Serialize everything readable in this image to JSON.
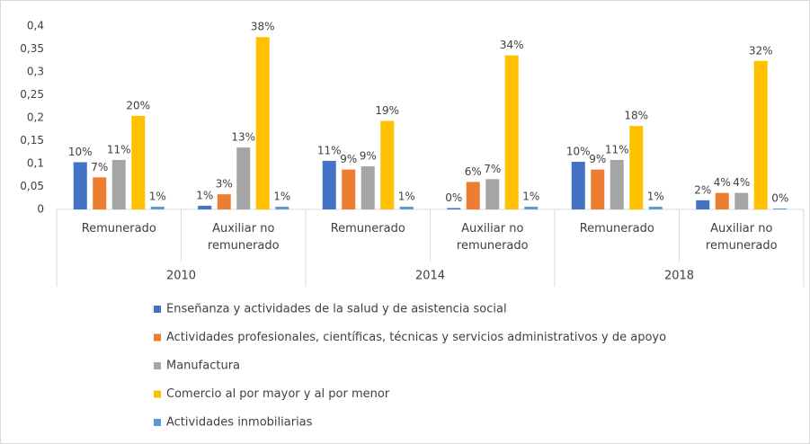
{
  "chart_data": {
    "type": "bar",
    "categories": [
      "Remunerado",
      "Auxiliar no remunerado",
      "Remunerado",
      "Auxiliar no remunerado",
      "Remunerado",
      "Auxiliar no remunerado"
    ],
    "category_groups": [
      "2010",
      "2014",
      "2018"
    ],
    "series": [
      {
        "name": "Enseñanza y actividades de la salud y de asistencia social",
        "color": "#4472c4",
        "values": [
          0.103,
          0.008,
          0.106,
          0.003,
          0.104,
          0.02
        ],
        "value_labels": [
          "10%",
          "1%",
          "11%",
          "0%",
          "10%",
          "2%"
        ]
      },
      {
        "name": "Actividades profesionales, científicas, técnicas y servicios administrativos y de apoyo",
        "color": "#ed7d31",
        "values": [
          0.07,
          0.033,
          0.087,
          0.06,
          0.087,
          0.036
        ],
        "value_labels": [
          "7%",
          "3%",
          "9%",
          "6%",
          "9%",
          "4%"
        ]
      },
      {
        "name": "Manufactura",
        "color": "#a5a5a5",
        "values": [
          0.108,
          0.135,
          0.094,
          0.066,
          0.108,
          0.036
        ],
        "value_labels": [
          "11%",
          "13%",
          "9%",
          "7%",
          "11%",
          "4%"
        ]
      },
      {
        "name": "Comercio al por mayor y al por menor",
        "color": "#ffc000",
        "values": [
          0.204,
          0.376,
          0.193,
          0.336,
          0.182,
          0.324
        ],
        "value_labels": [
          "20%",
          "38%",
          "19%",
          "34%",
          "18%",
          "32%"
        ]
      },
      {
        "name": "Actividades inmobiliarias",
        "color": "#5b9bd5",
        "values": [
          0.006,
          0.006,
          0.006,
          0.006,
          0.006,
          0.002
        ],
        "value_labels": [
          "1%",
          "1%",
          "1%",
          "1%",
          "1%",
          "0%"
        ]
      }
    ],
    "ylim": [
      0,
      0.4
    ],
    "yticks": [
      0,
      {
        "value": 0.05,
        "label": "0,05"
      },
      {
        "value": 0.1,
        "label": "0,1"
      },
      {
        "value": 0.15,
        "label": "0,15"
      },
      {
        "value": 0.2,
        "label": "0,2"
      },
      {
        "value": 0.25,
        "label": "0,25"
      },
      {
        "value": 0.3,
        "label": "0,3"
      },
      {
        "value": 0.35,
        "label": "0,35"
      },
      {
        "value": 0.4,
        "label": "0,4"
      }
    ],
    "grid": false,
    "legend": "bottom"
  }
}
